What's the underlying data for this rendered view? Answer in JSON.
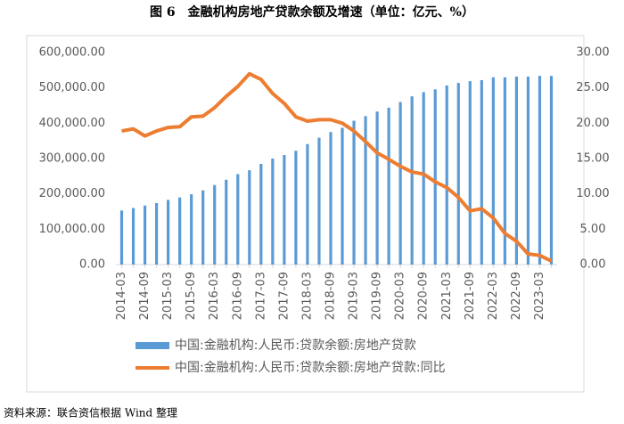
{
  "chart_data": {
    "type": "bar_line",
    "title": "图 6　金融机构房地产贷款余额及增速（单位：亿元、%）",
    "source": "资料来源：联合资信根据 Wind 整理",
    "categories": [
      "2014-03",
      null,
      "2014-09",
      null,
      "2015-03",
      null,
      "2015-09",
      null,
      "2016-03",
      null,
      "2016-09",
      null,
      "2017-03",
      null,
      "2017-09",
      null,
      "2018-03",
      null,
      "2018-09",
      null,
      "2019-03",
      null,
      "2019-09",
      null,
      "2020-03",
      null,
      "2020-09",
      null,
      "2021-03",
      null,
      "2021-09",
      null,
      "2022-03",
      null,
      "2022-09",
      null,
      "2023-03",
      null
    ],
    "series": [
      {
        "name": "中国:金融机构:人民币:贷款余额:房地产贷款",
        "color": "#5b9bd5",
        "type": "bar",
        "axis": "y",
        "values": [
          153000,
          160000,
          167000,
          174000,
          183000,
          190000,
          199000,
          210000,
          225000,
          240000,
          256000,
          267000,
          285000,
          300000,
          310000,
          322000,
          341000,
          359000,
          375000,
          387000,
          407000,
          420000,
          433000,
          444000,
          460000,
          476000,
          488000,
          496000,
          507000,
          514000,
          519000,
          522000,
          530000,
          530000,
          532000,
          532000,
          534000,
          534000
        ]
      },
      {
        "name": "中国:金融机构:人民币:贷款余额:房地产贷款:同比",
        "color": "#ed7d31",
        "type": "line",
        "axis": "y2",
        "values": [
          18.9,
          19.2,
          18.2,
          18.9,
          19.4,
          19.5,
          20.9,
          21.0,
          22.2,
          23.8,
          25.2,
          27.0,
          26.2,
          24.2,
          22.8,
          20.9,
          20.3,
          20.5,
          20.5,
          20.0,
          18.9,
          17.4,
          15.8,
          14.9,
          13.9,
          13.1,
          12.8,
          11.7,
          10.9,
          9.5,
          7.6,
          7.9,
          6.6,
          4.4,
          3.3,
          1.5,
          1.3,
          0.5
        ]
      }
    ],
    "ylim": [
      0,
      600000
    ],
    "yticks": [
      {
        "value": 0,
        "label": "0.00"
      },
      {
        "value": 100000,
        "label": "100,000.00"
      },
      {
        "value": 200000,
        "label": "200,000.00"
      },
      {
        "value": 300000,
        "label": "300,000.00"
      },
      {
        "value": 400000,
        "label": "400,000.00"
      },
      {
        "value": 500000,
        "label": "500,000.00"
      },
      {
        "value": 600000,
        "label": "600,000.00"
      }
    ],
    "y2lim": [
      0,
      30
    ],
    "y2ticks": [
      {
        "value": 0,
        "label": "0.00"
      },
      {
        "value": 5,
        "label": "5.00"
      },
      {
        "value": 10,
        "label": "10.00"
      },
      {
        "value": 15,
        "label": "15.00"
      },
      {
        "value": 20,
        "label": "20.00"
      },
      {
        "value": 25,
        "label": "25.00"
      },
      {
        "value": 30,
        "label": "30.00"
      }
    ],
    "legend": "bottom"
  }
}
